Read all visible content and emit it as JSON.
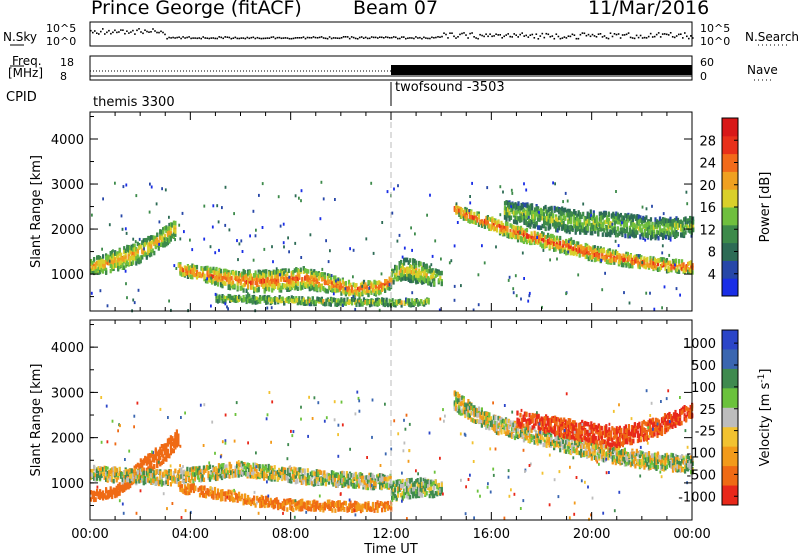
{
  "header": {
    "station": "Prince George (fitACF)",
    "beam": "Beam 07",
    "date": "11/Mar/2016"
  },
  "top_panels": {
    "nsky_label": "N.Sky",
    "nsearch_label": "N.Search",
    "freq_label_1": "Freq.",
    "freq_label_2": "[MHz]",
    "nave_label": "Nave",
    "cpid_label": "CPID",
    "nsky_ticks": [
      "10^5",
      "10^0"
    ],
    "nsearch_ticks": [
      "10^5",
      "10^0"
    ],
    "freq_ticks": [
      "18",
      "8"
    ],
    "nave_ticks": [
      "60",
      "0"
    ],
    "cpid_segments": [
      {
        "label": "themis 3300",
        "start_h": 0,
        "end_h": 12
      },
      {
        "label": "twofsound -3503",
        "start_h": 12,
        "end_h": 24
      }
    ]
  },
  "chart_data": [
    {
      "type": "heatmap",
      "title": "",
      "xlabel": "",
      "ylabel": "Slant Range [km]",
      "xlim": [
        0,
        24
      ],
      "ylim": [
        180,
        4600
      ],
      "yticks": [
        1000,
        2000,
        3000,
        4000
      ],
      "colorbar": {
        "label": "Power [dB]",
        "ticks": [
          4,
          8,
          12,
          16,
          20,
          24,
          28
        ],
        "range": [
          0,
          32
        ],
        "colors": [
          "#1a2ee6",
          "#2747a8",
          "#2d6b55",
          "#3d8a4a",
          "#6fbf3e",
          "#d9d02a",
          "#f0a020",
          "#f26a1a",
          "#e8301a",
          "#d81818"
        ]
      },
      "scatter_bands": [
        {
          "name": "evening E/F",
          "t": [
            0.0,
            0.5,
            1.0,
            1.5,
            2.0,
            2.5,
            3.0,
            3.4
          ],
          "range": [
            1150,
            1200,
            1300,
            1380,
            1500,
            1650,
            1850,
            2050
          ],
          "width": [
            350,
            400,
            450,
            450,
            450,
            400,
            400,
            350
          ],
          "power": 22
        },
        {
          "name": "morning arc",
          "t": [
            3.5,
            4.5,
            5.5,
            6.5,
            7.5,
            8.5,
            9.5,
            10.5,
            11.5,
            12.0
          ],
          "range": [
            1100,
            1000,
            880,
            820,
            850,
            900,
            780,
            650,
            700,
            850
          ],
          "width": [
            250,
            300,
            400,
            450,
            450,
            450,
            350,
            300,
            300,
            300
          ],
          "power": 26
        },
        {
          "name": "near range",
          "t": [
            5.0,
            6.5,
            8.0,
            9.5,
            11.0,
            12.5,
            13.5
          ],
          "range": [
            450,
            430,
            410,
            380,
            370,
            360,
            380
          ],
          "width": [
            120,
            140,
            140,
            130,
            130,
            130,
            120
          ],
          "power": 18
        },
        {
          "name": "midday",
          "t": [
            12.0,
            12.5,
            13.0,
            13.5,
            14.0
          ],
          "range": [
            950,
            1100,
            1050,
            950,
            900
          ],
          "width": [
            300,
            450,
            500,
            400,
            250
          ],
          "power": 20
        },
        {
          "name": "afternoon F",
          "t": [
            14.5,
            15.0,
            16.0,
            17.0,
            18.0,
            19.0,
            20.0,
            21.0,
            22.0,
            23.0,
            24.0
          ],
          "range": [
            2450,
            2300,
            2100,
            1900,
            1750,
            1600,
            1450,
            1350,
            1250,
            1180,
            1150
          ],
          "width": [
            200,
            250,
            280,
            300,
            300,
            300,
            300,
            280,
            250,
            250,
            250
          ],
          "power": 28
        },
        {
          "name": "afternoon far",
          "t": [
            16.5,
            18.0,
            19.5,
            21.0,
            22.5,
            24.0
          ],
          "range": [
            2400,
            2250,
            2150,
            2100,
            2000,
            2050
          ],
          "width": [
            400,
            500,
            500,
            500,
            450,
            400
          ],
          "power": 16
        }
      ]
    },
    {
      "type": "heatmap",
      "title": "",
      "xlabel": "Time UT",
      "ylabel": "Slant Range [km]",
      "xlim": [
        0,
        24
      ],
      "ylim": [
        180,
        4600
      ],
      "xtick_labels": [
        "00:00",
        "04:00",
        "08:00",
        "12:00",
        "16:00",
        "20:00",
        "00:00"
      ],
      "yticks": [
        1000,
        2000,
        3000,
        4000
      ],
      "colorbar": {
        "label": "Velocity [m s^-1]",
        "ticks": [
          1000,
          500,
          100,
          25,
          -25,
          -100,
          -500,
          -1000
        ],
        "colors": [
          "#2b45c8",
          "#3a66b0",
          "#3f8a4f",
          "#6bc23c",
          "#bdbdbd",
          "#f2c230",
          "#f29a1a",
          "#ef6a14",
          "#e8281a"
        ]
      },
      "scatter_bands": [
        {
          "name": "evening",
          "t": [
            0.0,
            1.0,
            2.0,
            3.0,
            3.5
          ],
          "range": [
            700,
            800,
            1300,
            1700,
            2000
          ],
          "width": [
            200,
            200,
            400,
            400,
            350
          ],
          "velocity": -500
        },
        {
          "name": "morning",
          "t": [
            3.5,
            5.0,
            6.5,
            8.0,
            9.5,
            11.0,
            12.0
          ],
          "range": [
            900,
            750,
            600,
            500,
            480,
            450,
            500
          ],
          "width": [
            200,
            200,
            200,
            220,
            200,
            180,
            180
          ],
          "velocity": -300
        },
        {
          "name": "ground",
          "t": [
            0.0,
            3.0,
            6.0,
            9.0,
            12.0
          ],
          "range": [
            1200,
            1100,
            1300,
            1100,
            1000
          ],
          "width": [
            300,
            300,
            300,
            300,
            300
          ],
          "velocity": 0
        },
        {
          "name": "midday",
          "t": [
            12.0,
            13.0,
            14.0
          ],
          "range": [
            800,
            900,
            850
          ],
          "width": [
            400,
            400,
            300
          ],
          "velocity": 60
        },
        {
          "name": "afternoon",
          "t": [
            14.5,
            16.0,
            18.0,
            20.0,
            22.0,
            24.0
          ],
          "range": [
            2800,
            2300,
            2000,
            1700,
            1500,
            1400
          ],
          "width": [
            400,
            350,
            350,
            350,
            350,
            350
          ],
          "velocity": 0
        },
        {
          "name": "afternoon far",
          "t": [
            17.0,
            19.0,
            21.0,
            22.5,
            24.0
          ],
          "range": [
            2400,
            2200,
            2000,
            2200,
            2600
          ],
          "width": [
            300,
            400,
            400,
            400,
            300
          ],
          "velocity": -700
        }
      ]
    }
  ]
}
